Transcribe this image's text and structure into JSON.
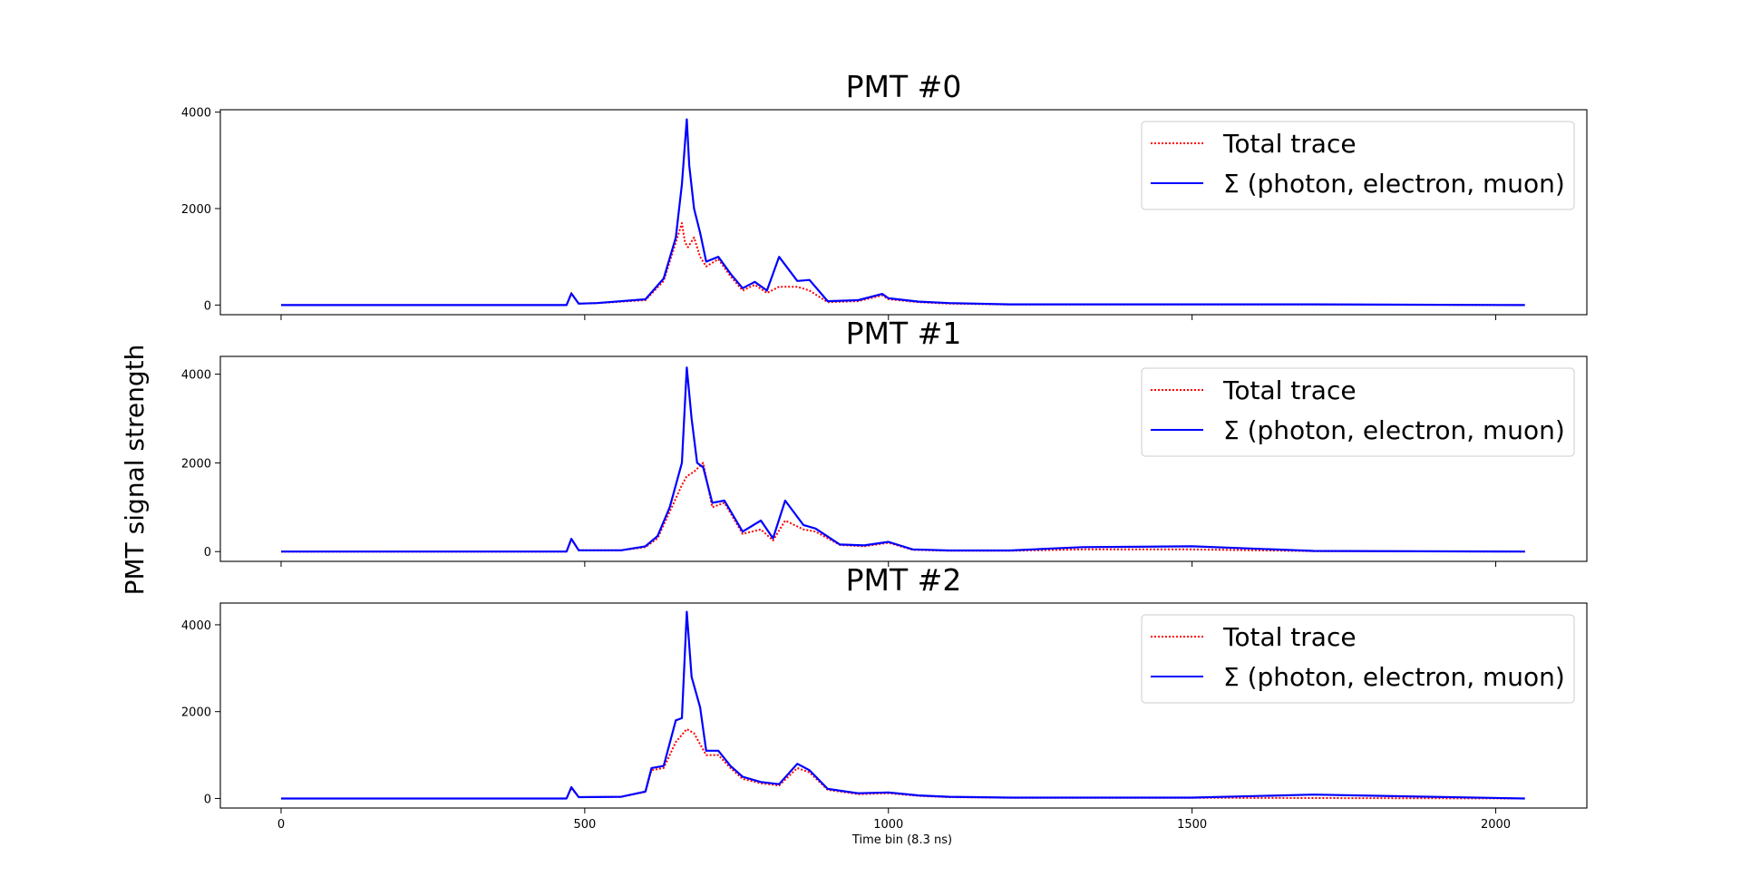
{
  "figure": {
    "ylabel": "PMT signal strength",
    "xlabel": "Time bin (8.3 ns)"
  },
  "colors": {
    "total": "#ff0000",
    "sum": "#0000ff",
    "axes": "#000000",
    "legend_border": "#cccccc"
  },
  "chart_data": [
    {
      "type": "line",
      "title": "PMT #0",
      "xlim": [
        -100,
        2150
      ],
      "ylim": [
        -200,
        4050
      ],
      "x_ticks": [
        0,
        500,
        1000,
        1500,
        2000
      ],
      "y_ticks": [
        0,
        2000,
        4000
      ],
      "legend": {
        "placement": "upper right",
        "entries": [
          "Total trace",
          "Σ (photon, electron, muon)"
        ]
      },
      "series": [
        {
          "name": "Total trace",
          "style": "dotted",
          "x": [
            0,
            470,
            478,
            490,
            520,
            600,
            630,
            650,
            660,
            665,
            670,
            680,
            690,
            700,
            720,
            740,
            760,
            780,
            800,
            820,
            850,
            870,
            900,
            950,
            990,
            1000,
            1050,
            1100,
            1200,
            1300,
            1500,
            1700,
            2048
          ],
          "y": [
            0,
            0,
            250,
            30,
            40,
            100,
            500,
            1300,
            1700,
            1300,
            1200,
            1400,
            1000,
            800,
            950,
            600,
            300,
            420,
            250,
            380,
            380,
            300,
            60,
            80,
            200,
            120,
            60,
            30,
            10,
            10,
            10,
            10,
            0
          ]
        },
        {
          "name": "Σ (photon, electron, muon)",
          "style": "solid",
          "x": [
            0,
            470,
            478,
            490,
            520,
            600,
            630,
            650,
            660,
            668,
            672,
            680,
            690,
            700,
            720,
            740,
            760,
            780,
            800,
            820,
            850,
            870,
            900,
            950,
            990,
            1000,
            1050,
            1100,
            1200,
            1300,
            1500,
            1700,
            2048
          ],
          "y": [
            0,
            0,
            240,
            30,
            40,
            120,
            550,
            1400,
            2500,
            3850,
            2900,
            2000,
            1500,
            900,
            1000,
            650,
            350,
            480,
            300,
            1000,
            500,
            520,
            80,
            100,
            230,
            140,
            70,
            40,
            15,
            15,
            15,
            15,
            0
          ]
        }
      ]
    },
    {
      "type": "line",
      "title": "PMT #1",
      "xlim": [
        -100,
        2150
      ],
      "ylim": [
        -220,
        4400
      ],
      "x_ticks": [
        0,
        500,
        1000,
        1500,
        2000
      ],
      "y_ticks": [
        0,
        2000,
        4000
      ],
      "legend": {
        "placement": "upper right",
        "entries": [
          "Total trace",
          "Σ (photon, electron, muon)"
        ]
      },
      "series": [
        {
          "name": "Total trace",
          "style": "dotted",
          "x": [
            0,
            470,
            478,
            490,
            560,
            600,
            620,
            640,
            660,
            668,
            680,
            695,
            710,
            730,
            760,
            790,
            810,
            830,
            860,
            880,
            920,
            960,
            1000,
            1040,
            1100,
            1200,
            1320,
            1500,
            1700,
            2048
          ],
          "y": [
            0,
            0,
            280,
            30,
            30,
            100,
            300,
            900,
            1500,
            1700,
            1800,
            2000,
            1000,
            1100,
            400,
            500,
            250,
            700,
            500,
            450,
            150,
            120,
            200,
            40,
            20,
            20,
            50,
            50,
            10,
            0
          ]
        },
        {
          "name": "Σ (photon, electron, muon)",
          "style": "solid",
          "x": [
            0,
            470,
            478,
            490,
            560,
            600,
            620,
            640,
            660,
            668,
            676,
            685,
            695,
            710,
            730,
            760,
            790,
            810,
            830,
            860,
            880,
            920,
            960,
            1000,
            1040,
            1100,
            1200,
            1320,
            1500,
            1700,
            2048
          ],
          "y": [
            0,
            0,
            290,
            30,
            30,
            120,
            350,
            1000,
            2000,
            4150,
            3000,
            2000,
            1900,
            1100,
            1150,
            450,
            700,
            300,
            1150,
            600,
            520,
            160,
            140,
            220,
            50,
            25,
            25,
            100,
            120,
            15,
            0
          ]
        }
      ]
    },
    {
      "type": "line",
      "title": "PMT #2",
      "xlim": [
        -100,
        2150
      ],
      "ylim": [
        -220,
        4500
      ],
      "x_ticks": [
        0,
        500,
        1000,
        1500,
        2000
      ],
      "y_ticks": [
        0,
        2000,
        4000
      ],
      "legend": {
        "placement": "upper right",
        "entries": [
          "Total trace",
          "Σ (photon, electron, muon)"
        ]
      },
      "series": [
        {
          "name": "Total trace",
          "style": "dotted",
          "x": [
            0,
            470,
            478,
            490,
            560,
            600,
            610,
            630,
            650,
            668,
            680,
            700,
            720,
            740,
            760,
            790,
            820,
            850,
            870,
            900,
            950,
            1000,
            1050,
            1100,
            1200,
            1300,
            1500,
            1700,
            2048
          ],
          "y": [
            0,
            0,
            240,
            30,
            40,
            150,
            650,
            700,
            1300,
            1600,
            1500,
            1000,
            1000,
            700,
            450,
            350,
            300,
            700,
            600,
            200,
            100,
            120,
            60,
            30,
            15,
            15,
            15,
            10,
            0
          ]
        },
        {
          "name": "Σ (photon, electron, muon)",
          "style": "solid",
          "x": [
            0,
            470,
            478,
            490,
            560,
            600,
            610,
            630,
            650,
            660,
            668,
            676,
            690,
            700,
            720,
            740,
            760,
            790,
            820,
            850,
            870,
            900,
            950,
            1000,
            1050,
            1100,
            1200,
            1300,
            1500,
            1700,
            2048
          ],
          "y": [
            0,
            0,
            260,
            30,
            40,
            160,
            700,
            750,
            1800,
            1850,
            4300,
            2800,
            2100,
            1100,
            1100,
            750,
            500,
            380,
            330,
            800,
            650,
            220,
            120,
            140,
            70,
            40,
            20,
            20,
            20,
            90,
            0
          ]
        }
      ]
    }
  ]
}
